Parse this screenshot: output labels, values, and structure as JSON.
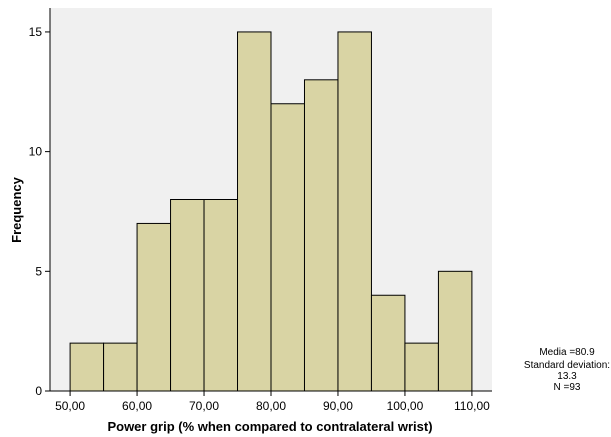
{
  "chart_data": {
    "type": "bar",
    "subtype": "histogram",
    "xlabel": "Power grip (% when compared to contralateral wrist)",
    "ylabel": "Frequency",
    "x_ticks": [
      "50,00",
      "60,00",
      "70,00",
      "80,00",
      "90,00",
      "100,00",
      "110,00"
    ],
    "x_tick_values": [
      50,
      60,
      70,
      80,
      90,
      100,
      110
    ],
    "y_ticks": [
      "0",
      "5",
      "10",
      "15"
    ],
    "y_tick_values": [
      0,
      5,
      10,
      15
    ],
    "xlim": [
      47,
      113
    ],
    "ylim": [
      0,
      16
    ],
    "bins": [
      {
        "start": 50,
        "end": 55,
        "count": 2
      },
      {
        "start": 55,
        "end": 60,
        "count": 2
      },
      {
        "start": 60,
        "end": 65,
        "count": 7
      },
      {
        "start": 65,
        "end": 70,
        "count": 8
      },
      {
        "start": 70,
        "end": 75,
        "count": 8
      },
      {
        "start": 75,
        "end": 80,
        "count": 15
      },
      {
        "start": 80,
        "end": 85,
        "count": 12
      },
      {
        "start": 85,
        "end": 90,
        "count": 13
      },
      {
        "start": 90,
        "end": 95,
        "count": 15
      },
      {
        "start": 95,
        "end": 100,
        "count": 4
      },
      {
        "start": 100,
        "end": 105,
        "count": 2
      },
      {
        "start": 105,
        "end": 110,
        "count": 5
      }
    ],
    "stats_lines": [
      "Media =80.9",
      "Standard deviation:",
      "13.3",
      "N =93"
    ],
    "grid": false,
    "colors": {
      "plot_background": "#f0f0f0",
      "bar_fill": "#d9d4a4",
      "bar_stroke": "#000000"
    }
  }
}
